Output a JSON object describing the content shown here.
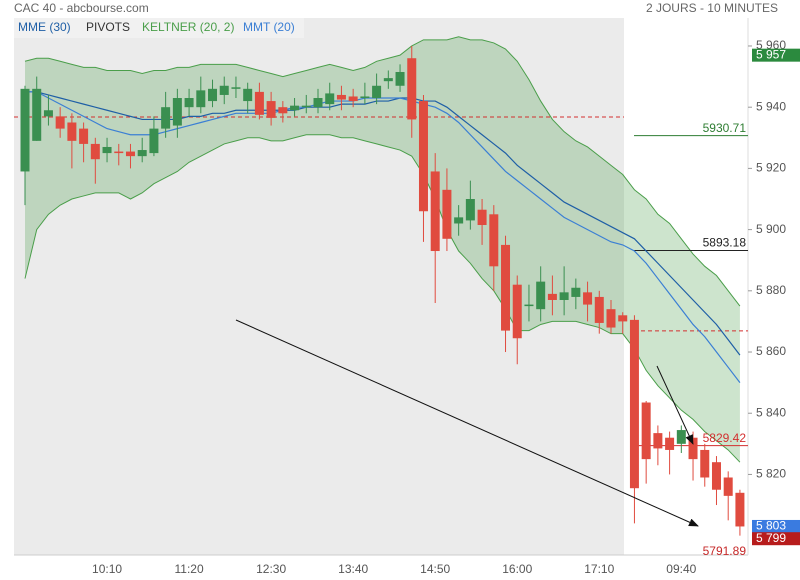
{
  "chart_data": {
    "type": "candlestick",
    "title": "CAC 40 - abcbourse.com",
    "subtitle": "2 JOURS - 10 MINUTES",
    "categories": [
      null,
      null,
      null,
      null,
      null,
      null,
      null,
      "10:10",
      null,
      null,
      null,
      null,
      null,
      null,
      "11:20",
      null,
      null,
      null,
      null,
      null,
      null,
      "12:30",
      null,
      null,
      null,
      null,
      null,
      null,
      "13:40",
      null,
      null,
      null,
      null,
      null,
      null,
      "14:50",
      null,
      null,
      null,
      null,
      null,
      null,
      "16:00",
      null,
      null,
      null,
      null,
      null,
      null,
      "17:10",
      null,
      null,
      null,
      null,
      null,
      null,
      "09:40",
      null,
      null,
      null,
      null,
      null
    ],
    "open": [
      5919,
      5929,
      5937,
      5937,
      5935,
      5933,
      5928,
      5925,
      5925.5,
      5925.5,
      5924,
      5925,
      5933,
      5934,
      5940,
      5940,
      5942,
      5944,
      5946,
      5942,
      5945,
      5942,
      5940,
      5939,
      5940,
      5940,
      5941,
      5944,
      5943.5,
      5943,
      5943,
      5948.5,
      5947,
      5956,
      5942,
      5919,
      5913,
      5902,
      5903,
      5906.5,
      5905,
      5895,
      5882,
      5875,
      5874,
      5879,
      5877,
      5878,
      5879.5,
      5878,
      5874,
      5872,
      5870.5,
      5843.5,
      5833.5,
      5832,
      5830,
      5832,
      5828,
      5824,
      5819,
      5814
    ],
    "high": [
      5947,
      5950,
      5944,
      5940,
      5938,
      5935,
      5930,
      5930,
      5928,
      5928,
      5930,
      5937,
      5945,
      5946,
      5946,
      5950,
      5949,
      5950,
      5950,
      5948,
      5948,
      5945,
      5942,
      5943,
      5944,
      5946,
      5948,
      5947,
      5946,
      5948,
      5951,
      5952,
      5954,
      5960,
      5944,
      5925,
      5920,
      5908,
      5916,
      5910,
      5908,
      5898,
      5885,
      5882,
      5888,
      5885,
      5888,
      5884,
      5883,
      5880,
      5877,
      5873,
      5872,
      5844,
      5836,
      5834,
      5836,
      5834,
      5830,
      5826,
      5821,
      5815
    ],
    "low": [
      5908,
      5929,
      5934,
      5930,
      5920,
      5922,
      5915,
      5922,
      5921,
      5920,
      5922,
      5924,
      5930,
      5930,
      5937,
      5938,
      5940,
      5941,
      5943,
      5938,
      5936,
      5934,
      5935,
      5937,
      5938,
      5938,
      5939,
      5939,
      5940,
      5941,
      5941,
      5946,
      5945,
      5930,
      5896,
      5876,
      5893,
      5898,
      5900,
      5895,
      5880,
      5860,
      5856,
      5870,
      5870,
      5872,
      5872,
      5874,
      5870,
      5866,
      5866,
      5866,
      5804,
      5817,
      5823,
      5820,
      5827,
      5818,
      5816,
      5810,
      5805,
      5800
    ],
    "close": [
      5946,
      5946,
      5939,
      5933,
      5929,
      5928,
      5923,
      5927,
      5925,
      5924,
      5926,
      5933,
      5940,
      5943,
      5943,
      5945.5,
      5946,
      5947,
      5946.5,
      5946,
      5937.5,
      5936.5,
      5938,
      5940.5,
      5940.5,
      5943,
      5944.5,
      5942.5,
      5942,
      5943.5,
      5947,
      5949.5,
      5951.5,
      5936,
      5906,
      5893,
      5897,
      5904,
      5910,
      5901.5,
      5888,
      5867,
      5864.5,
      5875.5,
      5883,
      5877,
      5879.5,
      5881,
      5875.5,
      5869.5,
      5868,
      5870,
      5815.5,
      5825,
      5828.5,
      5828,
      5834.5,
      5825,
      5819,
      5815,
      5813,
      5803
    ],
    "up_color": "#3a8f50",
    "down_color": "#e04b3f",
    "indicators": [
      {
        "name": "MME (30)",
        "color": "#1f5fa6",
        "values": [
          5945,
          5945,
          5944,
          5943,
          5942,
          5941,
          5940,
          5939,
          5938,
          5937,
          5936,
          5936,
          5936,
          5936,
          5937,
          5937,
          5938,
          5938,
          5939,
          5939,
          5939,
          5939,
          5939,
          5939,
          5940,
          5940,
          5940,
          5941,
          5941,
          5941,
          5942,
          5942,
          5943,
          5943,
          5942,
          5942,
          5940,
          5937,
          5934,
          5931,
          5928,
          5925,
          5921,
          5918,
          5915,
          5912,
          5909,
          5907,
          5905,
          5903,
          5901,
          5899,
          5897,
          5893,
          5889,
          5885,
          5881,
          5877,
          5873,
          5869,
          5864,
          5859
        ]
      },
      {
        "name": "MMT (20)",
        "color": "#3b7fd4",
        "values": [
          5945,
          5945,
          5943,
          5941,
          5939,
          5937,
          5935,
          5933,
          5932,
          5931,
          5931,
          5931,
          5932,
          5933,
          5934,
          5935,
          5936,
          5937,
          5938,
          5938,
          5938,
          5938,
          5939,
          5940,
          5940,
          5941,
          5942,
          5942,
          5942,
          5943,
          5943,
          5943,
          5943,
          5942,
          5941,
          5940,
          5938,
          5935,
          5931,
          5927,
          5923,
          5919,
          5916,
          5913,
          5910,
          5907,
          5904,
          5902,
          5900,
          5898,
          5896,
          5895,
          5893,
          5889,
          5884,
          5879,
          5874,
          5869,
          5865,
          5860,
          5855,
          5850
        ]
      }
    ],
    "keltner": {
      "name": "KELTNER (20, 2)",
      "color": "#4a9e4a",
      "upper": [
        5955,
        5956,
        5956,
        5955,
        5954,
        5953,
        5953,
        5952,
        5952,
        5952,
        5951,
        5952,
        5952,
        5953,
        5953,
        5954,
        5954,
        5954,
        5954,
        5953,
        5952,
        5951,
        5950,
        5951,
        5952,
        5953,
        5954,
        5953,
        5952,
        5953,
        5955,
        5956,
        5957,
        5960,
        5962,
        5962,
        5962,
        5963,
        5962,
        5962,
        5961,
        5959,
        5955,
        5949,
        5942,
        5936,
        5932,
        5929,
        5927,
        5924,
        5921,
        5918,
        5913,
        5910,
        5905,
        5902,
        5897,
        5892,
        5888,
        5885,
        5880,
        5875
      ],
      "lower": [
        5884,
        5900,
        5905,
        5908,
        5910,
        5911,
        5912,
        5912,
        5912,
        5910,
        5912,
        5915,
        5917,
        5919,
        5922,
        5924,
        5926,
        5928,
        5929,
        5930,
        5930,
        5929,
        5929,
        5930,
        5931,
        5931,
        5931,
        5930,
        5930,
        5929,
        5928,
        5927,
        5926,
        5924,
        5918,
        5910,
        5900,
        5893,
        5889,
        5884,
        5880,
        5874,
        5867,
        5867,
        5869,
        5870,
        5870,
        5870,
        5869,
        5868,
        5866,
        5866,
        5861,
        5854,
        5849,
        5845,
        5841,
        5838,
        5834,
        5831,
        5828,
        5824
      ]
    },
    "pivots": {
      "name": "PIVOTS",
      "color": "#d32f2f",
      "points": [
        5936.8,
        5866.9
      ],
      "levels": [
        {
          "value": 5930.71,
          "color": "#2e7d32"
        },
        {
          "value": 5893.18,
          "color": "#222222"
        },
        {
          "value": 5829.42,
          "color": "#d32f2f"
        },
        {
          "value": 5791.89,
          "color": "#c62828"
        }
      ]
    },
    "tags": [
      {
        "value": 5957,
        "label": "5 957",
        "color": "#2b8a3e"
      },
      {
        "value": 5803,
        "label": "5 803",
        "color": "#3a7be0"
      },
      {
        "value": 5799,
        "label": "5 799",
        "color": "#b71c1c"
      }
    ],
    "ylim": [
      5794,
      5968
    ],
    "yticks": [
      {
        "value": 5820,
        "label": "5 820"
      },
      {
        "value": 5840,
        "label": "5 840"
      },
      {
        "value": 5860,
        "label": "5 860"
      },
      {
        "value": 5880,
        "label": "5 880"
      },
      {
        "value": 5900,
        "label": "5 900"
      },
      {
        "value": 5920,
        "label": "5 920"
      },
      {
        "value": 5940,
        "label": "5 940"
      },
      {
        "value": 5960,
        "label": "5 960"
      }
    ]
  }
}
